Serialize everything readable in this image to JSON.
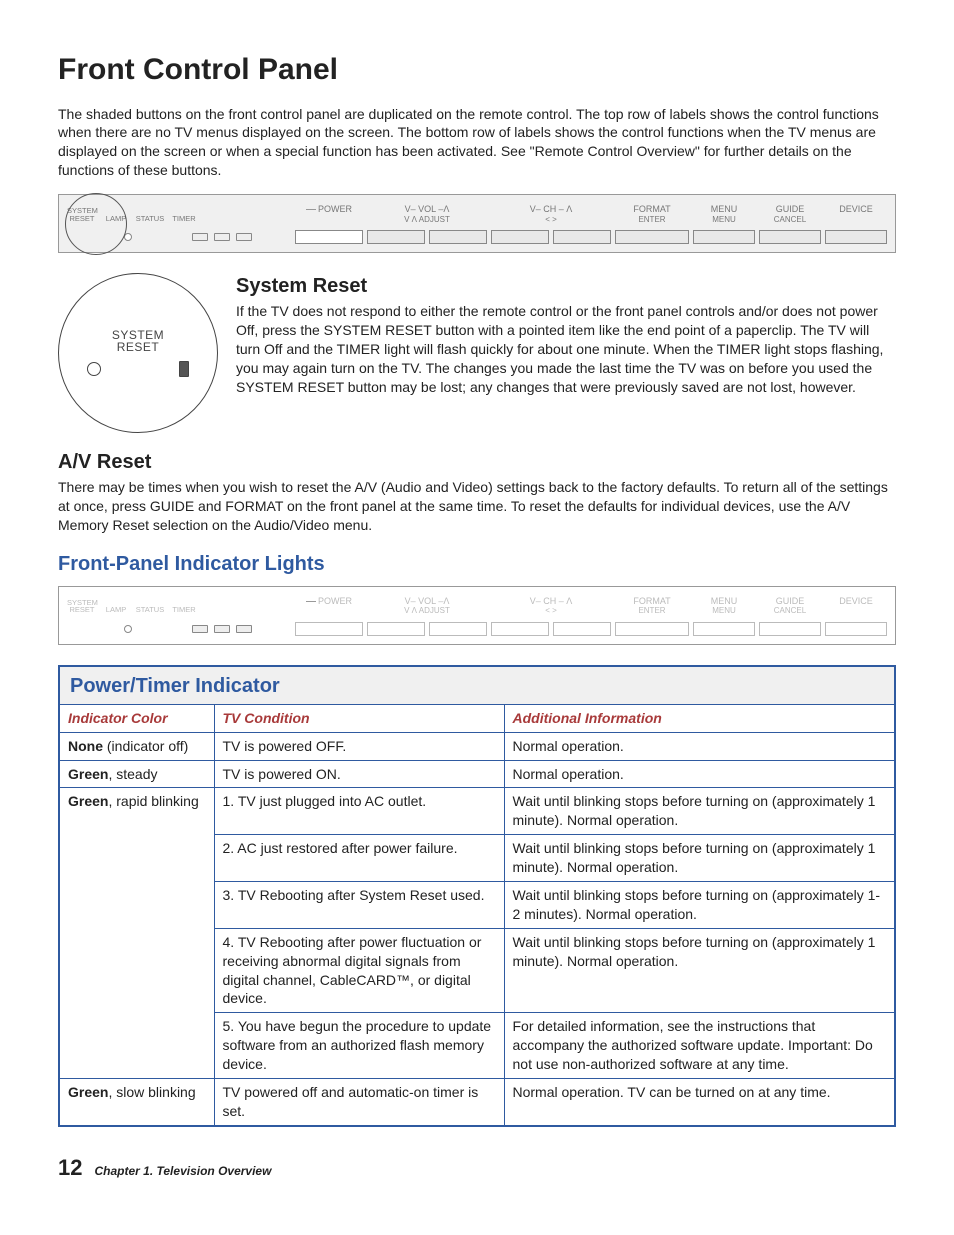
{
  "title": "Front Control Panel",
  "intro": "The shaded buttons on the front control panel are duplicated on the remote control.  The top row of labels shows the control functions when there are no TV menus displayed on the screen.  The bottom row of labels shows the control functions when the TV menus are displayed on the screen or when a special function has been activated.  See \"Remote Control Overview\" for further details on the functions of these buttons.",
  "panel": {
    "left_labels": [
      "SYSTEM",
      "RESET",
      "LAMP",
      "STATUS",
      "TIMER"
    ],
    "buttons": [
      {
        "top": "POWER",
        "sub": ""
      },
      {
        "top": "V– VOL –Λ",
        "sub": "V           Λ           ADJUST"
      },
      {
        "top": "V– CH – Λ",
        "sub": "<                          >"
      },
      {
        "top": "FORMAT",
        "sub": "ENTER"
      },
      {
        "top": "MENU",
        "sub": "MENU"
      },
      {
        "top": "GUIDE",
        "sub": "CANCEL"
      },
      {
        "top": "DEVICE",
        "sub": ""
      }
    ]
  },
  "sysreset": {
    "heading": "System Reset",
    "zoom_label1": "SYSTEM",
    "zoom_label2": "RESET",
    "text": "If the TV does not respond to either the remote control or the front panel controls and/or does not power Off, press the SYSTEM RESET button with a pointed item like the end point of a paperclip.  The TV will turn Off and the TIMER light will flash quickly for about one minute.  When the TIMER light stops flashing, you may again turn on the TV.  The changes you made the last time the TV was on before you used the SYSTEM RESET button may be lost; any changes that were previously saved are not lost, however."
  },
  "avreset": {
    "heading": "A/V Reset",
    "text": "There may be times when you wish to reset the A/V (Audio and Video) settings back to the factory defaults.  To return all of the settings at once, press GUIDE and FORMAT on the front panel at the same time.  To reset the defaults for individual devices, use the A/V Memory Reset selection on the Audio/Video menu."
  },
  "indicator_section": "Front-Panel Indicator Lights",
  "table": {
    "title": "Power/Timer Indicator",
    "headers": [
      "Indicator Color",
      "TV Condition",
      "Additional Information"
    ],
    "rows": [
      {
        "c1_html": "<span class='nb'>None</span> (indicator off)",
        "c2": "TV is powered OFF.",
        "c3": "Normal operation.",
        "span": 1
      },
      {
        "c1_html": "<span class='nb'>Green</span>, steady",
        "c2": "TV is powered ON.",
        "c3": "Normal operation.",
        "span": 1
      },
      {
        "c1_html": "<span class='nb'>Green</span>, rapid blinking",
        "c2": "1.  TV just plugged into AC outlet.",
        "c3": "Wait until blinking stops before turning on (approximately 1 minute).  Normal operation.",
        "span": 5
      },
      {
        "c1_html": "",
        "c2": "2.  AC just restored after power failure.",
        "c3": "Wait until blinking stops before turning on (approximately 1 minute).  Normal operation."
      },
      {
        "c1_html": "",
        "c2": "3.  TV Rebooting after System Reset used.",
        "c3": "Wait until blinking stops before turning on (approximately 1-2 minutes).  Normal operation."
      },
      {
        "c1_html": "",
        "c2": "4.  TV Rebooting after power fluctuation or receiving abnormal digital signals from digital channel, CableCARD™, or digital device.",
        "c3": "Wait until blinking stops before turning on (approximately 1 minute).  Normal operation."
      },
      {
        "c1_html": "",
        "c2": "5.  You have begun the procedure to update software from an authorized flash memory device.",
        "c3": "For detailed information, see the instructions that accompany the authorized software update.  Important:  Do not use non-authorized software at any time."
      },
      {
        "c1_html": "<span class='nb'>Green</span>, slow blinking",
        "c2": "TV powered off and automatic-on timer is set.",
        "c3": "Normal operation.  TV can be turned on at any time.",
        "span": 1
      }
    ]
  },
  "footer": {
    "page": "12",
    "chapter": "Chapter 1. Television Overview"
  }
}
